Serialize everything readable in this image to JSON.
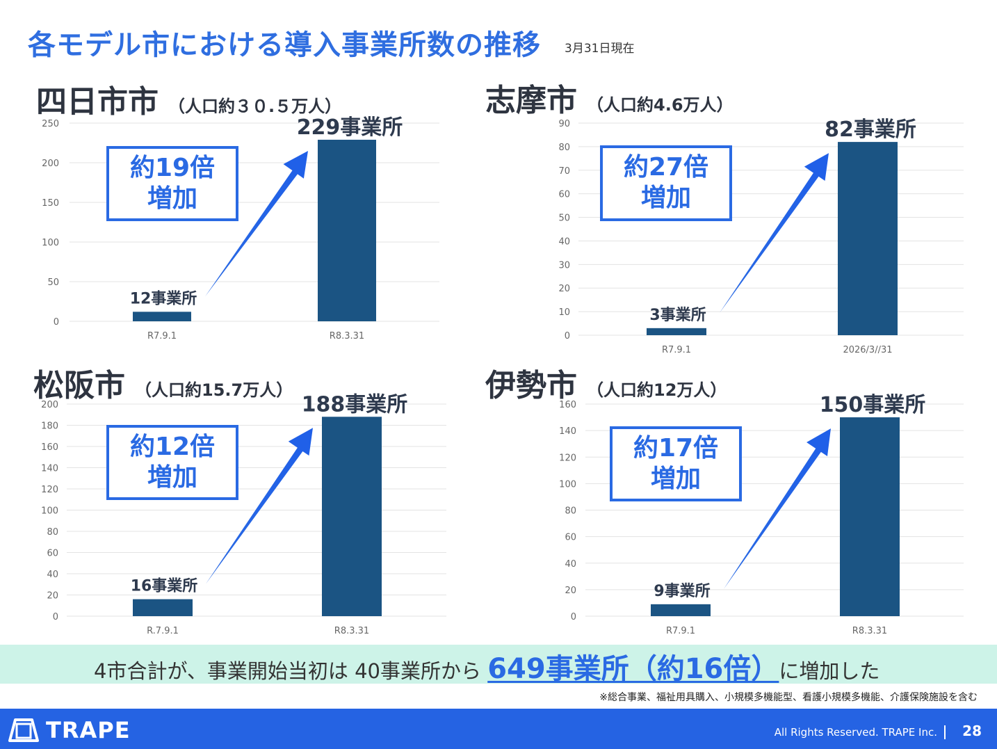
{
  "title": "各モデル市における導入事業所数の推移",
  "as_of": "3月31日現在",
  "cities": [
    {
      "name": "四日市市",
      "population": "（人口約３０.５万人）",
      "multiplier": "約19倍",
      "increase": "増加"
    },
    {
      "name": "志摩市",
      "population": "（人口約4.6万人）",
      "multiplier": "約27倍",
      "increase": "増加"
    },
    {
      "name": "松阪市",
      "population": "（人口約15.7万人）",
      "multiplier": "約12倍",
      "increase": "増加"
    },
    {
      "name": "伊勢市",
      "population": "（人口約12万人）",
      "multiplier": "約17倍",
      "increase": "増加"
    }
  ],
  "chart_data": [
    {
      "type": "bar",
      "categories": [
        "R7.9.1",
        "R8.3.31"
      ],
      "values": [
        12,
        229
      ],
      "data_labels": [
        "12事業所",
        "229事業所"
      ],
      "ylim": [
        0,
        250
      ],
      "yticks": [
        0,
        50,
        100,
        150,
        200,
        250
      ],
      "grid": true
    },
    {
      "type": "bar",
      "categories": [
        "R7.9.1",
        "2026/3//31"
      ],
      "values": [
        3,
        82
      ],
      "data_labels": [
        "3事業所",
        "82事業所"
      ],
      "ylim": [
        0,
        90
      ],
      "yticks": [
        0,
        10,
        20,
        30,
        40,
        50,
        60,
        70,
        80,
        90
      ],
      "grid": true
    },
    {
      "type": "bar",
      "categories": [
        "R.7.9.1",
        "R8.3.31"
      ],
      "values": [
        16,
        188
      ],
      "data_labels": [
        "16事業所",
        "188事業所"
      ],
      "ylim": [
        0,
        200
      ],
      "yticks": [
        0,
        20,
        40,
        60,
        80,
        100,
        120,
        140,
        160,
        180,
        200
      ],
      "grid": true
    },
    {
      "type": "bar",
      "categories": [
        "R7.9.1",
        "R8.3.31"
      ],
      "values": [
        9,
        150
      ],
      "data_labels": [
        "9事業所",
        "150事業所"
      ],
      "ylim": [
        0,
        160
      ],
      "yticks": [
        0,
        20,
        40,
        60,
        80,
        100,
        120,
        140,
        160
      ],
      "grid": true
    }
  ],
  "summary": {
    "prefix": "4市合計が、事業開始当初は 40事業所から ",
    "highlight": "649事業所（約16倍）",
    "suffix": "に増加した"
  },
  "note": "※総合事業、福祉用具購入、小規模多機能型、看護小規模多機能、介護保険施設を含む",
  "footer": {
    "logo_text": "TRAPE",
    "copyright": "All Rights Reserved. TRAPE Inc.",
    "page_number": "28"
  },
  "colors": {
    "accent": "#2a6ae3",
    "bar": "#1b5483",
    "summary_bg": "#cdf3e8",
    "footer_bg": "#2563e3"
  }
}
